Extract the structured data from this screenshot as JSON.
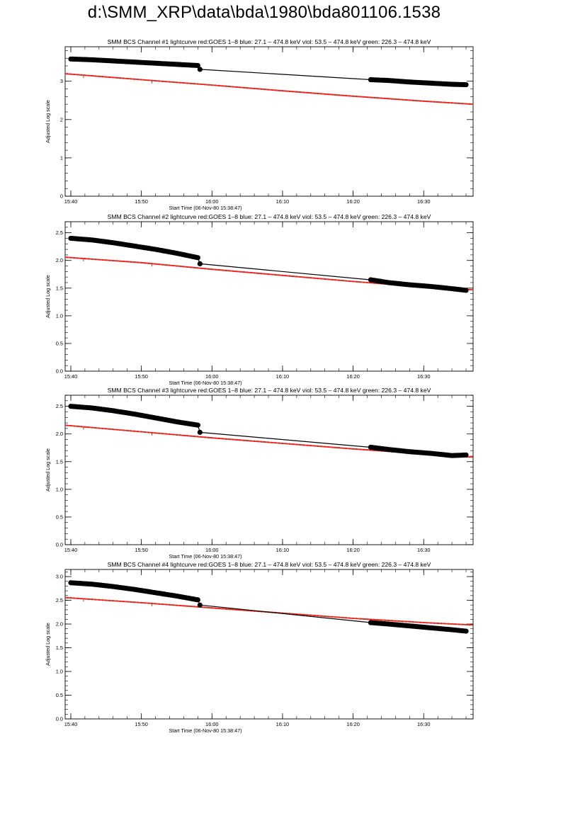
{
  "page": {
    "title": "d:\\SMM_XRP\\data\\bda\\1980\\bda801106.1538"
  },
  "colors": {
    "goes": "#e8281e",
    "bcs": "#000000",
    "axes": "#000000"
  },
  "chart_data": [
    {
      "type": "line",
      "title": "SMM BCS Channel #1 lightcurve  red:GOES 1–8  blue: 27.1 – 474.8 keV  viol: 53.5 – 474.8 keV  green: 226.3 – 474.8 keV",
      "xlabel": "Start Time (06-Nov-80 15:38:47)",
      "ylabel": "Adjusted Log scale",
      "xlim": [
        -0.8,
        57.0
      ],
      "ylim": [
        0,
        3.9
      ],
      "yticks": [
        0,
        1,
        2,
        3
      ],
      "ytick_labels": [
        "0",
        "1",
        "2",
        "3"
      ],
      "xticks": [
        0,
        10,
        20,
        30,
        40,
        50
      ],
      "xtick_labels": [
        "15:40",
        "15:50",
        "16:00",
        "16:10",
        "16:20",
        "16:30"
      ],
      "x_unit": "minutes after 15:40",
      "grid": false,
      "series": [
        {
          "name": "red:GOES 1–8",
          "color": "#e8281e",
          "style": "line",
          "x": [
            -1,
            10,
            20,
            30,
            40,
            50,
            57
          ],
          "y": [
            3.2,
            3.04,
            2.9,
            2.75,
            2.61,
            2.48,
            2.4
          ]
        },
        {
          "name": "SMM BCS Channel #1",
          "color": "#000000",
          "style": "line+markers",
          "x": [
            0,
            3,
            6,
            9,
            12,
            15,
            18,
            18.3,
            42.5,
            45,
            48,
            51,
            54,
            56
          ],
          "y": [
            3.58,
            3.56,
            3.53,
            3.5,
            3.47,
            3.44,
            3.41,
            3.31,
            3.04,
            3.02,
            2.98,
            2.95,
            2.92,
            2.91
          ]
        }
      ]
    },
    {
      "type": "line",
      "title": "SMM BCS Channel #2 lightcurve  red:GOES 1–8  blue: 27.1 – 474.8 keV  viol: 53.5 – 474.8 keV  green: 226.3 – 474.8 keV",
      "xlabel": "Start Time (06-Nov-80 15:38:47)",
      "ylabel": "Adjusted Log scale",
      "xlim": [
        -0.8,
        57.0
      ],
      "ylim": [
        0,
        2.7
      ],
      "yticks": [
        0,
        0.5,
        1,
        1.5,
        2,
        2.5
      ],
      "ytick_labels": [
        "0.0",
        "0.5",
        "1.0",
        "1.5",
        "2.0",
        "2.5"
      ],
      "xticks": [
        0,
        10,
        20,
        30,
        40,
        50
      ],
      "xtick_labels": [
        "15:40",
        "15:50",
        "16:00",
        "16:10",
        "16:20",
        "16:30"
      ],
      "x_unit": "minutes after 15:40",
      "grid": false,
      "series": [
        {
          "name": "red:GOES 1–8",
          "color": "#e8281e",
          "style": "line",
          "x": [
            -1,
            10,
            20,
            30,
            40,
            50,
            57
          ],
          "y": [
            2.06,
            1.96,
            1.84,
            1.73,
            1.62,
            1.52,
            1.47
          ]
        },
        {
          "name": "SMM BCS Channel #2",
          "color": "#000000",
          "style": "line+markers",
          "x": [
            0,
            3,
            6,
            9,
            12,
            15,
            18,
            18.3,
            42.5,
            45,
            48,
            51,
            54,
            56
          ],
          "y": [
            2.4,
            2.37,
            2.32,
            2.26,
            2.2,
            2.13,
            2.05,
            1.94,
            1.65,
            1.6,
            1.56,
            1.53,
            1.49,
            1.46
          ]
        }
      ]
    },
    {
      "type": "line",
      "title": "SMM BCS Channel #3 lightcurve  red:GOES 1–8  blue: 27.1 – 474.8 keV  viol: 53.5 – 474.8 keV  green: 226.3 – 474.8 keV",
      "xlabel": "Start Time (06-Nov-80 15:38:47)",
      "ylabel": "Adjusted Log scale",
      "xlim": [
        -0.8,
        57.0
      ],
      "ylim": [
        0,
        2.7
      ],
      "yticks": [
        0,
        0.5,
        1,
        1.5,
        2,
        2.5
      ],
      "ytick_labels": [
        "0.0",
        "0.5",
        "1.0",
        "1.5",
        "2.0",
        "2.5"
      ],
      "xticks": [
        0,
        10,
        20,
        30,
        40,
        50
      ],
      "xtick_labels": [
        "15:40",
        "15:50",
        "16:00",
        "16:10",
        "16:20",
        "16:30"
      ],
      "x_unit": "minutes after 15:40",
      "grid": false,
      "series": [
        {
          "name": "red:GOES 1–8",
          "color": "#e8281e",
          "style": "line",
          "x": [
            -1,
            10,
            20,
            30,
            40,
            50,
            57
          ],
          "y": [
            2.16,
            2.04,
            1.93,
            1.83,
            1.73,
            1.64,
            1.58
          ]
        },
        {
          "name": "SMM BCS Channel #3",
          "color": "#000000",
          "style": "line+markers",
          "x": [
            0,
            3,
            6,
            9,
            12,
            15,
            18,
            18.3,
            42.5,
            45,
            48,
            51,
            54,
            56
          ],
          "y": [
            2.5,
            2.47,
            2.42,
            2.36,
            2.29,
            2.22,
            2.16,
            2.03,
            1.76,
            1.72,
            1.68,
            1.65,
            1.61,
            1.62
          ]
        }
      ]
    },
    {
      "type": "line",
      "title": "SMM BCS Channel #4 lightcurve  red:GOES 1–8  blue: 27.1 – 474.8 keV  viol: 53.5 – 474.8 keV  green: 226.3 – 474.8 keV",
      "xlabel": "Start Time (06-Nov-80 15:38:47)",
      "ylabel": "Adjusted Log scale",
      "xlim": [
        -0.8,
        57.0
      ],
      "ylim": [
        0,
        3.15
      ],
      "yticks": [
        0,
        0.5,
        1,
        1.5,
        2,
        2.5,
        3
      ],
      "ytick_labels": [
        "0.0",
        "0.5",
        "1.0",
        "1.5",
        "2.0",
        "2.5",
        "3.0"
      ],
      "xticks": [
        0,
        10,
        20,
        30,
        40,
        50
      ],
      "xtick_labels": [
        "15:40",
        "15:50",
        "16:00",
        "16:10",
        "16:20",
        "16:30"
      ],
      "x_unit": "minutes after 15:40",
      "grid": false,
      "series": [
        {
          "name": "red:GOES 1–8",
          "color": "#e8281e",
          "style": "line",
          "x": [
            -1,
            10,
            20,
            30,
            40,
            50,
            57
          ],
          "y": [
            2.56,
            2.45,
            2.34,
            2.23,
            2.12,
            2.03,
            1.98
          ]
        },
        {
          "name": "SMM BCS Channel #4",
          "color": "#000000",
          "style": "line+markers",
          "x": [
            0,
            3,
            6,
            9,
            12,
            15,
            18,
            18.3,
            42.5,
            45,
            48,
            51,
            54,
            56
          ],
          "y": [
            2.87,
            2.84,
            2.79,
            2.73,
            2.66,
            2.59,
            2.51,
            2.4,
            2.03,
            2.0,
            1.96,
            1.92,
            1.88,
            1.85
          ]
        }
      ]
    }
  ]
}
